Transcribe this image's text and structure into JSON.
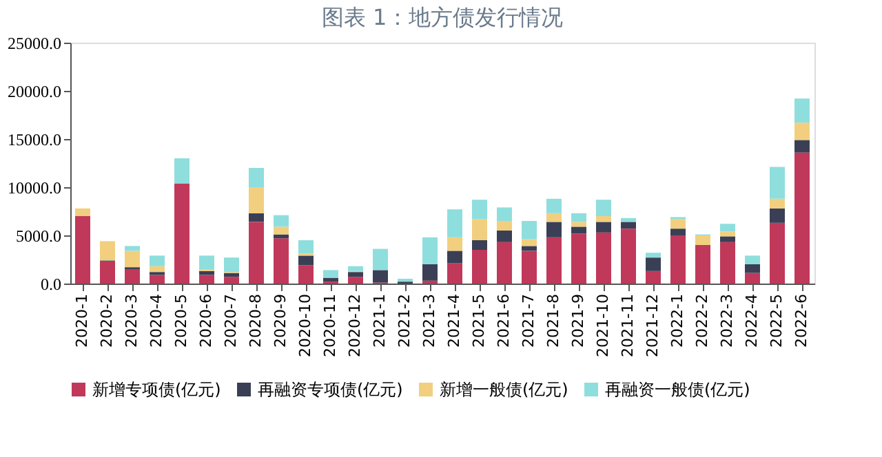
{
  "chart_data": {
    "type": "bar",
    "stacked": true,
    "title": "图表 1：地方债发行情况",
    "categories": [
      "2020-1",
      "2020-2",
      "2020-3",
      "2020-4",
      "2020-5",
      "2020-6",
      "2020-7",
      "2020-8",
      "2020-9",
      "2020-10",
      "2020-11",
      "2020-12",
      "2021-1",
      "2021-2",
      "2021-3",
      "2021-4",
      "2021-5",
      "2021-6",
      "2021-7",
      "2021-8",
      "2021-9",
      "2021-10",
      "2021-11",
      "2021-12",
      "2022-1",
      "2022-2",
      "2022-3",
      "2022-4",
      "2022-5",
      "2022-6"
    ],
    "series": [
      {
        "name": "新增专项债(亿元)",
        "color": "#c0395a",
        "values": [
          7000,
          2300,
          1500,
          900,
          10400,
          900,
          700,
          6400,
          4700,
          1900,
          200,
          700,
          100,
          0,
          300,
          2100,
          3500,
          4300,
          3400,
          4800,
          5200,
          5300,
          5700,
          1300,
          5000,
          4000,
          4300,
          1100,
          6300,
          13600
        ]
      },
      {
        "name": "再融资专项债(亿元)",
        "color": "#3a3f55",
        "values": [
          0,
          100,
          200,
          300,
          0,
          400,
          400,
          900,
          400,
          1000,
          400,
          500,
          1300,
          200,
          1700,
          1300,
          1000,
          1200,
          500,
          1600,
          700,
          1100,
          700,
          1400,
          700,
          0,
          600,
          900,
          1500,
          1300
        ]
      },
      {
        "name": "新增一般债(亿元)",
        "color": "#f2cf7e",
        "values": [
          800,
          2000,
          1700,
          600,
          0,
          200,
          100,
          2700,
          800,
          200,
          0,
          100,
          0,
          0,
          0,
          1400,
          2200,
          1000,
          700,
          900,
          500,
          600,
          0,
          0,
          1000,
          1000,
          500,
          0,
          1000,
          1800
        ]
      },
      {
        "name": "再融资一般债(亿元)",
        "color": "#8fdede",
        "values": [
          0,
          0,
          500,
          1100,
          2600,
          1400,
          1500,
          2000,
          1200,
          1400,
          800,
          500,
          2200,
          300,
          2800,
          2900,
          2000,
          1400,
          1900,
          1500,
          900,
          1700,
          400,
          500,
          200,
          100,
          800,
          900,
          3300,
          2500
        ]
      }
    ],
    "ylim": [
      0,
      25000
    ],
    "yticks": [
      {
        "value": 0,
        "label": "0.0"
      },
      {
        "value": 5000,
        "label": "5000.0"
      },
      {
        "value": 10000,
        "label": "10000.0"
      },
      {
        "value": 15000,
        "label": "15000.0"
      },
      {
        "value": 20000,
        "label": "20000.0"
      },
      {
        "value": 25000,
        "label": "25000.0"
      }
    ],
    "grid": false,
    "legend": "bottom"
  }
}
